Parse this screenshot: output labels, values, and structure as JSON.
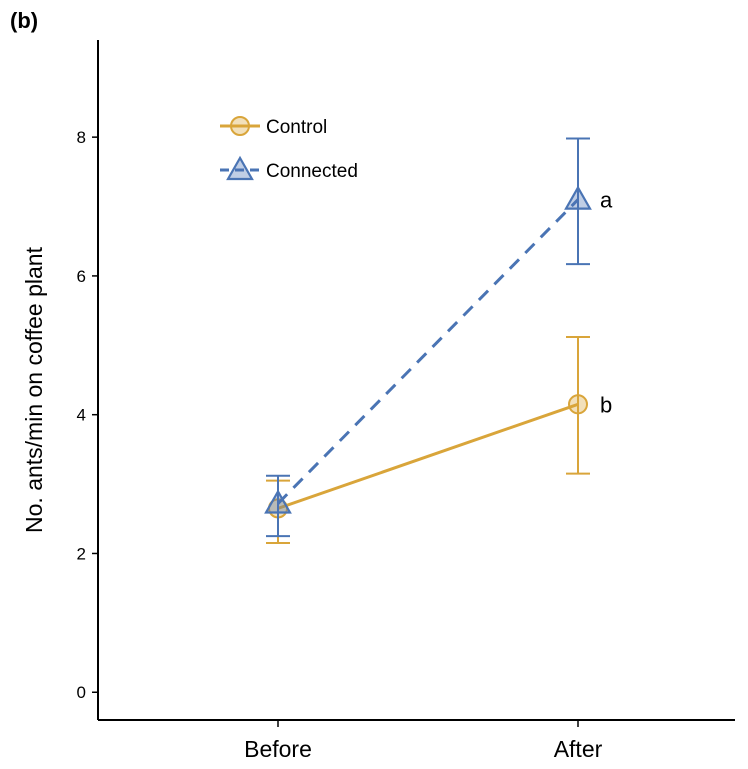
{
  "panel_label": "(b)",
  "colors": {
    "control": "#D9A53A",
    "connected": "#4A74B4",
    "axis": "#000000"
  },
  "legend": {
    "placement": "top-left"
  },
  "chart_data": {
    "type": "line",
    "categories": [
      "Before",
      "After"
    ],
    "title": "",
    "xlabel": "",
    "ylabel": "No. ants/min on coffee plant",
    "ylim": [
      -0.4,
      9.4
    ],
    "yticks": [
      0,
      2,
      4,
      6,
      8
    ],
    "grid": false,
    "series": [
      {
        "name": "Control",
        "marker": "circle",
        "line_style": "solid",
        "values": [
          2.65,
          4.15
        ],
        "error_low": [
          2.15,
          3.15
        ],
        "error_high": [
          3.05,
          5.12
        ],
        "labels": [
          "",
          "b"
        ]
      },
      {
        "name": "Connected",
        "marker": "triangle",
        "line_style": "dashed",
        "values": [
          2.72,
          7.1
        ],
        "error_low": [
          2.25,
          6.17
        ],
        "error_high": [
          3.12,
          7.98
        ],
        "labels": [
          "",
          "a"
        ]
      }
    ]
  }
}
